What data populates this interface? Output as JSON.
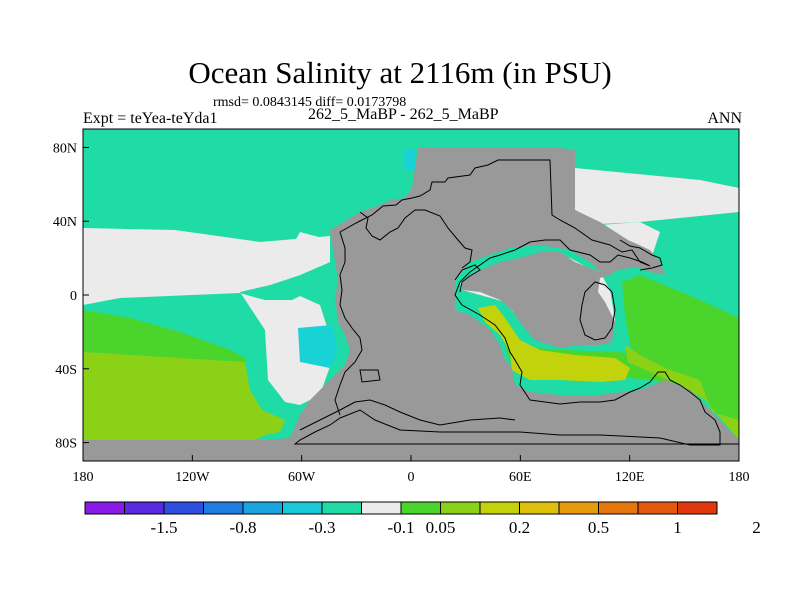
{
  "title": "Ocean Salinity at 2116m (in PSU)",
  "stats": "rmsd= 0.0843145 diff= 0.0173798",
  "experiment": "Expt = teYea-teYda1",
  "period": "262_5_MaBP - 262_5_MaBP",
  "season": "ANN",
  "colors": {
    "land": "#999999",
    "bin_neutral": "#ebebeb",
    "bin_teal": "#1fdba6",
    "bin_cyan": "#18d2d6",
    "bin_green": "#4bd42c",
    "bin_lime": "#8bd115",
    "bin_yellow": "#c3d30b",
    "outline": "#000000"
  },
  "map": {
    "x_ticks": [
      "180",
      "120W",
      "60W",
      "0",
      "60E",
      "120E",
      "180"
    ],
    "y_ticks": [
      "80N",
      "40N",
      "0",
      "40S",
      "80S"
    ]
  },
  "legend": {
    "colors": [
      "#8a1be6",
      "#5a2ae3",
      "#2e4ee0",
      "#1f7de2",
      "#1aa5e0",
      "#18c9d8",
      "#1fdba6",
      "#ebebeb",
      "#4bd42c",
      "#8bd115",
      "#c3d30b",
      "#dfc10b",
      "#e59b0c",
      "#e4770e",
      "#e35a0f",
      "#e0380e"
    ],
    "labels": [
      "-1.5",
      "-0.8",
      "-0.3",
      "-0.1",
      "0.05",
      "0.2",
      "0.5",
      "1",
      "2"
    ]
  }
}
